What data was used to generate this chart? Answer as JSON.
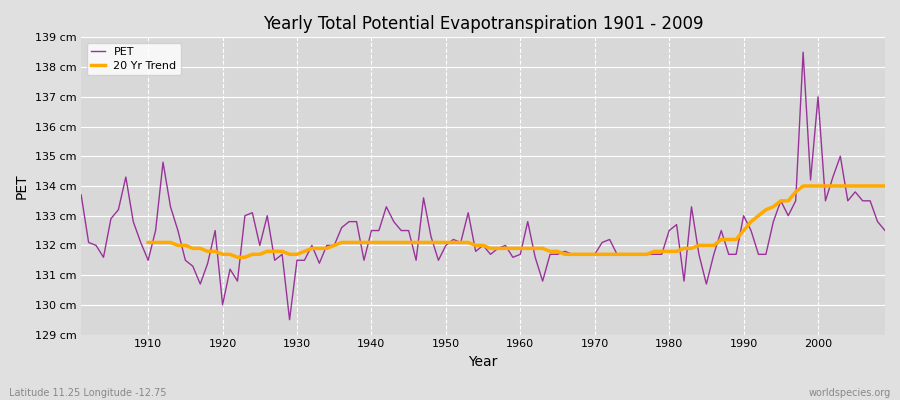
{
  "title": "Yearly Total Potential Evapotranspiration 1901 - 2009",
  "xlabel": "Year",
  "ylabel": "PET",
  "subtitle_left": "Latitude 11.25 Longitude -12.75",
  "subtitle_right": "worldspecies.org",
  "ylim": [
    129,
    139
  ],
  "xlim": [
    1901,
    2009
  ],
  "yticks": [
    129,
    130,
    131,
    132,
    133,
    134,
    135,
    136,
    137,
    138,
    139
  ],
  "xticks": [
    1910,
    1920,
    1930,
    1940,
    1950,
    1960,
    1970,
    1980,
    1990,
    2000
  ],
  "pet_color": "#993399",
  "trend_color": "#ffaa00",
  "bg_color": "#e0e0e0",
  "plot_bg_color": "#d8d8d8",
  "grid_color": "#ffffff",
  "legend_labels": [
    "PET",
    "20 Yr Trend"
  ],
  "years": [
    1901,
    1902,
    1903,
    1904,
    1905,
    1906,
    1907,
    1908,
    1909,
    1910,
    1911,
    1912,
    1913,
    1914,
    1915,
    1916,
    1917,
    1918,
    1919,
    1920,
    1921,
    1922,
    1923,
    1924,
    1925,
    1926,
    1927,
    1928,
    1929,
    1930,
    1931,
    1932,
    1933,
    1934,
    1935,
    1936,
    1937,
    1938,
    1939,
    1940,
    1941,
    1942,
    1943,
    1944,
    1945,
    1946,
    1947,
    1948,
    1949,
    1950,
    1951,
    1952,
    1953,
    1954,
    1955,
    1956,
    1957,
    1958,
    1959,
    1960,
    1961,
    1962,
    1963,
    1964,
    1965,
    1966,
    1967,
    1968,
    1969,
    1970,
    1971,
    1972,
    1973,
    1974,
    1975,
    1976,
    1977,
    1978,
    1979,
    1980,
    1981,
    1982,
    1983,
    1984,
    1985,
    1986,
    1987,
    1988,
    1989,
    1990,
    1991,
    1992,
    1993,
    1994,
    1995,
    1996,
    1997,
    1998,
    1999,
    2000,
    2001,
    2002,
    2003,
    2004,
    2005,
    2006,
    2007,
    2008,
    2009
  ],
  "pet_values": [
    133.7,
    132.1,
    132.0,
    131.6,
    132.9,
    133.2,
    134.3,
    132.8,
    132.1,
    131.5,
    132.5,
    134.8,
    133.3,
    132.5,
    131.5,
    131.3,
    130.7,
    131.4,
    132.5,
    130.0,
    131.2,
    130.8,
    133.0,
    133.1,
    132.0,
    133.0,
    131.5,
    131.7,
    129.5,
    131.5,
    131.5,
    132.0,
    131.4,
    132.0,
    132.0,
    132.6,
    132.8,
    132.8,
    131.5,
    132.5,
    132.5,
    133.3,
    132.8,
    132.5,
    132.5,
    131.5,
    133.6,
    132.3,
    131.5,
    132.0,
    132.2,
    132.1,
    133.1,
    131.8,
    132.0,
    131.7,
    131.9,
    132.0,
    131.6,
    131.7,
    132.8,
    131.6,
    130.8,
    131.7,
    131.7,
    131.8,
    131.7,
    131.7,
    131.7,
    131.7,
    132.1,
    132.2,
    131.7,
    131.7,
    131.7,
    131.7,
    131.7,
    131.7,
    131.7,
    132.5,
    132.7,
    130.8,
    133.3,
    131.7,
    130.7,
    131.7,
    132.5,
    131.7,
    131.7,
    133.0,
    132.5,
    131.7,
    131.7,
    132.8,
    133.5,
    133.0,
    133.5,
    138.5,
    134.2,
    137.0,
    133.5,
    134.3,
    135.0,
    133.5,
    133.8,
    133.5,
    133.5,
    132.8,
    132.5
  ],
  "trend_values": [
    null,
    null,
    null,
    null,
    null,
    null,
    null,
    null,
    null,
    132.1,
    132.1,
    132.1,
    132.1,
    132.0,
    132.0,
    131.9,
    131.9,
    131.8,
    131.8,
    131.7,
    131.7,
    131.6,
    131.6,
    131.7,
    131.7,
    131.8,
    131.8,
    131.8,
    131.7,
    131.7,
    131.8,
    131.9,
    131.9,
    131.9,
    132.0,
    132.1,
    132.1,
    132.1,
    132.1,
    132.1,
    132.1,
    132.1,
    132.1,
    132.1,
    132.1,
    132.1,
    132.1,
    132.1,
    132.1,
    132.1,
    132.1,
    132.1,
    132.1,
    132.0,
    132.0,
    131.9,
    131.9,
    131.9,
    131.9,
    131.9,
    131.9,
    131.9,
    131.9,
    131.8,
    131.8,
    131.7,
    131.7,
    131.7,
    131.7,
    131.7,
    131.7,
    131.7,
    131.7,
    131.7,
    131.7,
    131.7,
    131.7,
    131.8,
    131.8,
    131.8,
    131.8,
    131.9,
    131.9,
    132.0,
    132.0,
    132.0,
    132.2,
    132.2,
    132.2,
    132.5,
    132.8,
    133.0,
    133.2,
    133.3,
    133.5,
    133.5,
    133.8,
    134.0,
    134.0,
    134.0,
    134.0,
    134.0,
    134.0,
    134.0,
    134.0,
    134.0,
    134.0,
    134.0,
    134.0
  ]
}
